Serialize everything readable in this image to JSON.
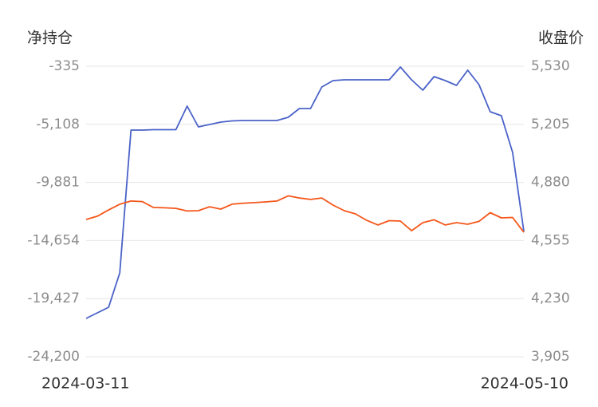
{
  "chart_data": {
    "type": "line",
    "y_axis_title": "净持仓",
    "y2_axis_title": "收盘价",
    "categories": [
      "2024-03-11",
      null,
      null,
      null,
      null,
      null,
      null,
      null,
      null,
      null,
      null,
      null,
      null,
      null,
      null,
      null,
      null,
      null,
      null,
      null,
      null,
      null,
      null,
      null,
      null,
      null,
      null,
      null,
      null,
      null,
      null,
      null,
      null,
      null,
      null,
      null,
      null,
      null,
      null,
      "2024-05-10"
    ],
    "ylim": [
      -24200,
      -335
    ],
    "yticks": [
      -335,
      {
        "value": -5108,
        "label": "-5,108"
      },
      {
        "value": -9881,
        "label": "-9,881"
      },
      {
        "value": -14654,
        "label": "-14,654"
      },
      {
        "value": -19427,
        "label": "-19,427"
      },
      {
        "value": -24200,
        "label": "-24,200"
      }
    ],
    "y2lim": [
      3905,
      5530
    ],
    "y2ticks": [
      {
        "value": 5530,
        "label": "5,530"
      },
      {
        "value": 5205,
        "label": "5,205"
      },
      {
        "value": 4880,
        "label": "4,880"
      },
      {
        "value": 4555,
        "label": "4,555"
      },
      {
        "value": 4230,
        "label": "4,230"
      },
      {
        "value": 3905,
        "label": "3,905"
      }
    ],
    "grid": true,
    "series": [
      {
        "name": "净持仓",
        "color": "#4a62c8",
        "values": [
          -21052,
          -20593,
          -20134,
          -17315,
          -5580,
          -5580,
          -5547,
          -5547,
          -5547,
          -3613,
          -5318,
          -5121,
          -4924,
          -4826,
          -4793,
          -4793,
          -4793,
          -4793,
          -4531,
          -3810,
          -3810,
          -2040,
          -1515,
          -1450,
          -1450,
          -1450,
          -1450,
          -1450,
          -401,
          -1450,
          -2302,
          -1187,
          -1515,
          -1908,
          -663,
          -1843,
          -4072,
          -4400,
          -7415,
          -13906
        ]
      },
      {
        "name": "收盘价",
        "color": "#f5561a",
        "axis": "y2",
        "values": [
          4673,
          4691,
          4726,
          4758,
          4776,
          4773,
          4740,
          4738,
          4735,
          4720,
          4722,
          4744,
          4731,
          4758,
          4764,
          4767,
          4771,
          4776,
          4805,
          4793,
          4785,
          4793,
          4753,
          4722,
          4704,
          4668,
          4642,
          4666,
          4664,
          4610,
          4655,
          4671,
          4642,
          4655,
          4646,
          4662,
          4711,
          4682,
          4684,
          4601
        ]
      }
    ]
  }
}
